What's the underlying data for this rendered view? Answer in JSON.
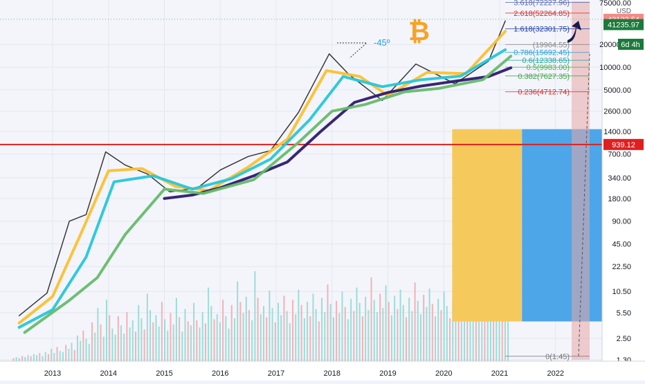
{
  "chart_data": {
    "type": "line",
    "symbol": "BTCUSD",
    "currency": "USD",
    "timeframe": "6d 4h",
    "x_ticks": [
      "2013",
      "2014",
      "2015",
      "2016",
      "2017",
      "2018",
      "2019",
      "2020",
      "2021",
      "2022"
    ],
    "y_scale": "log",
    "y_ticks": [
      "75000.00",
      "20000.00",
      "10000.00",
      "5000.00",
      "2600.00",
      "1400.00",
      "700.00",
      "340.00",
      "180.00",
      "90.00",
      "45.00",
      "22.50",
      "10.50",
      "5.50",
      "2.50",
      "1.30"
    ],
    "price_labels": {
      "top": "43123.54",
      "current": "41235.97",
      "line": "939.12"
    },
    "fib_levels": [
      {
        "label": "3.618(72227.96)",
        "value": 72227.96,
        "color": "#5a6bb0"
      },
      {
        "label": "2.618(52264.85)",
        "value": 52264.85,
        "color": "#d32f2f"
      },
      {
        "label": "1.618(32301.75)",
        "value": 32301.75,
        "color": "#1f3fa6"
      },
      {
        "label": "(19964.55)",
        "value": 19964.55,
        "color": "#888888"
      },
      {
        "label": "0.786(15692.45)",
        "value": 15692.45,
        "color": "#2a9fd6"
      },
      {
        "label": "0.6(12338.65)",
        "value": 12338.65,
        "color": "#26a69a"
      },
      {
        "label": "0.5(9983.00)",
        "value": 9983.0,
        "color": "#4caf50"
      },
      {
        "label": "0.382(7627.35)",
        "value": 7627.35,
        "color": "#43a047"
      },
      {
        "label": "0.236(4712.74)",
        "value": 4712.74,
        "color": "#d32f2f"
      },
      {
        "label": "0(1.45)",
        "value": 1.45,
        "color": "#777777"
      }
    ],
    "annotations": [
      "-45º",
      "₿"
    ],
    "series": [
      {
        "name": "",
        "color": "#222222",
        "x": [
          2012.4,
          2012.9,
          2013.3,
          2013.6,
          2013.95,
          2014.3,
          2014.7,
          2015.1,
          2015.6,
          2016.0,
          2016.5,
          2016.9,
          2017.4,
          2017.95,
          2018.3,
          2018.9,
          2019.5,
          2020.2,
          2020.8,
          2021.1
        ],
        "y": [
          5,
          10,
          90,
          110,
          750,
          500,
          380,
          220,
          250,
          430,
          650,
          780,
          2500,
          15000,
          8000,
          3600,
          11000,
          6000,
          12000,
          41000
        ]
      },
      {
        "name": "",
        "color": "#fbc02d",
        "x": [
          2012.4,
          2013.0,
          2013.5,
          2014.0,
          2014.6,
          2015.2,
          2015.8,
          2016.5,
          2017.2,
          2017.9,
          2018.5,
          2019.0,
          2019.7,
          2020.4,
          2021.1
        ],
        "y": [
          4,
          9,
          60,
          420,
          450,
          260,
          230,
          470,
          1100,
          9000,
          7500,
          4200,
          8500,
          8200,
          30000
        ]
      },
      {
        "name": "",
        "color": "#26c6da",
        "x": [
          2012.4,
          2013.0,
          2013.6,
          2014.1,
          2014.8,
          2015.5,
          2016.2,
          2016.9,
          2017.6,
          2018.2,
          2018.9,
          2019.6,
          2020.3,
          2021.1
        ],
        "y": [
          3.5,
          6,
          30,
          300,
          360,
          240,
          330,
          600,
          2000,
          7500,
          5500,
          6800,
          7600,
          17000
        ]
      },
      {
        "name": "",
        "color": "#2e1a6e",
        "x": [
          2015.0,
          2015.5,
          2016.0,
          2016.6,
          2017.2,
          2017.8,
          2018.4,
          2019.0,
          2019.6,
          2020.2,
          2020.8,
          2021.2
        ],
        "y": [
          180,
          200,
          250,
          360,
          550,
          1400,
          3400,
          4600,
          5600,
          6500,
          7500,
          9800
        ]
      },
      {
        "name": "",
        "color": "#66bb6a",
        "x": [
          2012.5,
          2013.3,
          2013.8,
          2014.3,
          2015.0,
          2015.7,
          2016.6,
          2017.4,
          2018.0,
          2018.6,
          2019.3,
          2019.9,
          2020.7,
          2021.2
        ],
        "y": [
          3,
          8,
          16,
          60,
          240,
          210,
          320,
          1000,
          2600,
          3200,
          4700,
          5200,
          6800,
          14000
        ]
      }
    ],
    "volume": [
      3,
      4,
      3,
      5,
      4,
      6,
      5,
      7,
      6,
      8,
      5,
      9,
      7,
      12,
      8,
      14,
      10,
      9,
      16,
      12,
      18,
      11,
      25,
      20,
      30,
      22,
      17,
      38,
      28,
      52,
      36,
      24,
      60,
      45,
      32,
      26,
      44,
      35,
      27,
      48,
      33,
      40,
      29,
      55,
      42,
      31,
      66,
      50,
      38,
      45,
      34,
      58,
      41,
      30,
      47,
      36,
      62,
      43,
      29,
      51,
      39,
      35,
      57,
      40,
      33,
      48,
      37,
      72,
      54,
      41,
      46,
      38,
      60,
      44,
      32,
      55,
      42,
      78,
      58,
      47,
      63,
      50,
      40,
      88,
      62,
      46,
      54,
      43,
      69,
      52,
      38,
      57,
      45,
      64,
      49,
      37,
      60,
      46,
      70,
      55,
      42,
      58,
      44,
      66,
      51,
      39,
      62,
      48,
      75,
      56,
      43,
      59,
      47,
      68,
      53,
      41,
      61,
      49,
      72,
      57,
      44,
      63,
      50,
      82,
      60,
      48,
      66,
      52,
      74,
      58,
      45,
      64,
      51,
      70,
      55,
      43,
      62,
      49,
      77,
      59,
      46,
      65,
      53,
      71,
      56,
      44,
      61,
      50,
      68,
      54,
      42,
      60,
      48,
      73,
      57,
      45,
      63,
      51,
      69,
      55,
      43,
      58,
      47,
      66,
      52,
      41,
      60,
      49,
      74,
      56,
      44
    ]
  }
}
